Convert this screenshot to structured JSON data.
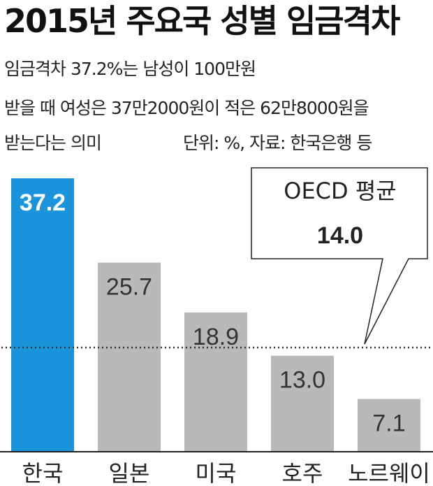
{
  "title": "2015년 주요국 성별 임금격차",
  "description": [
    "임금격차 37.2%는 남성이 100만원",
    "받을 때 여성은 37만2000원이 적은 62만8000원을",
    "받는다는 의미"
  ],
  "unit_source": "단위: %, 자료: 한국은행 등",
  "colors": {
    "highlight": "#1a95dc",
    "bar": "#b9b9bb",
    "highlight_label": "#ffffff",
    "label": "#333333"
  },
  "chart_data": {
    "type": "bar",
    "categories": [
      "한국",
      "일본",
      "미국",
      "호주",
      "노르웨이"
    ],
    "values": [
      37.2,
      25.7,
      18.9,
      13.0,
      7.1
    ],
    "value_labels": [
      "37.2",
      "25.7",
      "18.9",
      "13.0",
      "7.1"
    ],
    "highlight_index": 0,
    "ylim": [
      0,
      37.2
    ],
    "reference_line": {
      "label": "OECD 평균",
      "value": 14.0,
      "value_label": "14.0",
      "style": "dotted"
    }
  }
}
